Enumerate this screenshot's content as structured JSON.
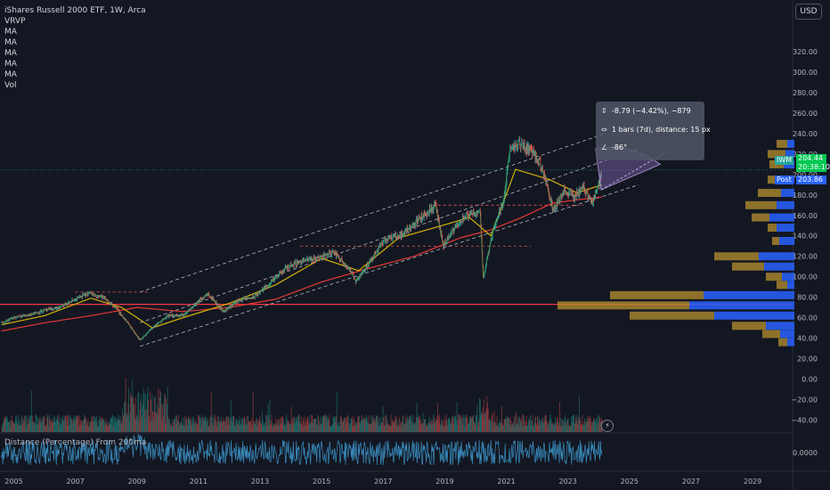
{
  "header": {
    "title": "iShares Russell 2000 ETF, 1W, Arca",
    "indicators": [
      "VRVP",
      "MA",
      "MA",
      "MA",
      "MA",
      "MA",
      "Vol"
    ],
    "currency": "USD"
  },
  "subpane": {
    "title": "Distance (Percentage) From 200ma",
    "zero_label": "0.0000"
  },
  "measure_tool": {
    "line1": "-8.79 (−4.42%), −879",
    "line2": "1 bars (7d), distance: 15 px",
    "line3": "-86°"
  },
  "price_badges": {
    "symbol": "IWM",
    "last": "204.44",
    "countdown": "20:38:10",
    "post_label": "Post",
    "post_value": "203.86"
  },
  "icons": {
    "measure": "measure-icon",
    "bars": "bars-range-icon",
    "angle": "angle-icon",
    "flash": "lightning-icon"
  },
  "colors": {
    "background": "#131722",
    "up": "#26a69a",
    "down": "#ef5350",
    "ma_red": "#e53935",
    "ma_yellow": "#d4b106",
    "ma_green": "#4caf50",
    "ma_blue": "#5c6bc0",
    "vp_blue": "#2962ff",
    "vp_gold": "#b8912f"
  },
  "chart_data": {
    "type": "line",
    "title": "iShares Russell 2000 ETF, 1W, Arca",
    "y_ticks": [
      "320.00",
      "300.00",
      "280.00",
      "260.00",
      "240.00",
      "220.00",
      "200.00",
      "180.00",
      "160.00",
      "140.00",
      "120.00",
      "100.00",
      "80.00",
      "60.00",
      "40.00",
      "20.00",
      "0.00",
      "−20.00",
      "−40.00"
    ],
    "x_ticks": [
      "2005",
      "2007",
      "2009",
      "2011",
      "2013",
      "2015",
      "2017",
      "2019",
      "2021",
      "2023",
      "2025",
      "2027",
      "2029"
    ],
    "ylim": [
      -50,
      340
    ],
    "xlim": [
      2004.55,
      2030.3
    ],
    "price_series": {
      "name": "IWM",
      "x": [
        2004.6,
        2005.0,
        2005.5,
        2006.0,
        2006.5,
        2007.0,
        2007.45,
        2007.9,
        2008.3,
        2008.7,
        2009.1,
        2009.5,
        2010.0,
        2010.5,
        2011.0,
        2011.3,
        2011.8,
        2012.3,
        2012.8,
        2013.3,
        2013.9,
        2014.3,
        2014.8,
        2015.4,
        2015.9,
        2016.1,
        2016.6,
        2017.0,
        2017.6,
        2018.2,
        2018.7,
        2018.95,
        2019.5,
        2019.9,
        2020.15,
        2020.25,
        2020.6,
        2020.9,
        2021.1,
        2021.4,
        2021.9,
        2022.3,
        2022.5,
        2022.9,
        2023.2,
        2023.5,
        2023.8,
        2023.95,
        2024.1
      ],
      "y": [
        55,
        60,
        63,
        67,
        70,
        78,
        84,
        80,
        70,
        55,
        38,
        50,
        62,
        62,
        76,
        84,
        66,
        77,
        80,
        93,
        110,
        115,
        118,
        124,
        108,
        96,
        115,
        136,
        141,
        157,
        170,
        130,
        155,
        162,
        164,
        99,
        150,
        172,
        222,
        230,
        222,
        195,
        166,
        184,
        178,
        188,
        172,
        185,
        204
      ]
    },
    "ma_series": [
      {
        "name": "MA",
        "color": "#e53935",
        "x": [
          2004.6,
          2006,
          2007.5,
          2009,
          2010.5,
          2012,
          2013.5,
          2015,
          2016.5,
          2018,
          2019.5,
          2020.5,
          2021.5,
          2022.5,
          2023.5,
          2024.1
        ],
        "y": [
          47,
          55,
          62,
          70,
          66,
          70,
          78,
          95,
          108,
          120,
          138,
          146,
          158,
          172,
          176,
          178
        ]
      },
      {
        "name": "MA",
        "color": "#d4b106",
        "x": [
          2004.6,
          2006,
          2007.5,
          2008.5,
          2009.5,
          2010.5,
          2012,
          2013.5,
          2015,
          2016.2,
          2017.5,
          2018.9,
          2019.8,
          2020.5,
          2021.3,
          2022.4,
          2023.3,
          2024.1
        ],
        "y": [
          53,
          62,
          79,
          70,
          50,
          60,
          74,
          92,
          118,
          106,
          138,
          150,
          158,
          140,
          205,
          195,
          182,
          190
        ]
      }
    ],
    "volume_profile": [
      {
        "price": 230,
        "gold": 12,
        "blue": 8
      },
      {
        "price": 220,
        "gold": 20,
        "blue": 10
      },
      {
        "price": 210,
        "gold": 16,
        "blue": 12
      },
      {
        "price": 195,
        "gold": 18,
        "blue": 12
      },
      {
        "price": 182,
        "gold": 26,
        "blue": 15
      },
      {
        "price": 170,
        "gold": 35,
        "blue": 20
      },
      {
        "price": 158,
        "gold": 20,
        "blue": 28
      },
      {
        "price": 148,
        "gold": 10,
        "blue": 20
      },
      {
        "price": 135,
        "gold": 8,
        "blue": 17
      },
      {
        "price": 120,
        "gold": 50,
        "blue": 40
      },
      {
        "price": 110,
        "gold": 36,
        "blue": 34
      },
      {
        "price": 100,
        "gold": 18,
        "blue": 14
      },
      {
        "price": 92,
        "gold": 12,
        "blue": 8
      },
      {
        "price": 82,
        "gold": 105,
        "blue": 102
      },
      {
        "price": 72,
        "gold": 148,
        "blue": 118
      },
      {
        "price": 62,
        "gold": 95,
        "blue": 90
      },
      {
        "price": 52,
        "gold": 38,
        "blue": 32
      },
      {
        "price": 44,
        "gold": 20,
        "blue": 16
      },
      {
        "price": 36,
        "gold": 10,
        "blue": 8
      }
    ],
    "horizontal_line": {
      "price": 73
    },
    "channel": {
      "upper": [
        [
          2009.1,
          85
        ],
        [
          2024.2,
          240
        ]
      ],
      "middle": [
        [
          2009.1,
          55
        ],
        [
          2025.3,
          225
        ]
      ],
      "lower": [
        [
          2009.1,
          32
        ],
        [
          2025.3,
          190
        ]
      ]
    },
    "dotted_price_line": 204.44
  }
}
